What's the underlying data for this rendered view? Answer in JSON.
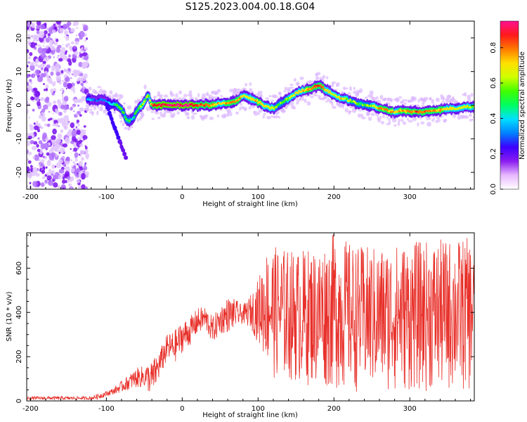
{
  "title": "S125.2023.004.00.18.G04",
  "chart_data": [
    {
      "type": "heatmap",
      "xlabel": "Height of straight line (km)",
      "ylabel": "Frequency (Hz)",
      "xlim": [
        -205,
        385
      ],
      "ylim": [
        -25,
        25
      ],
      "x_ticks": [
        -200,
        -100,
        0,
        100,
        200,
        300
      ],
      "y_ticks": [
        -20,
        -10,
        0,
        10,
        20
      ],
      "colorbar": {
        "label": "Normalized spectral amplitude",
        "range": [
          0,
          0.95
        ],
        "ticks": [
          0.0,
          0.2,
          0.4,
          0.6,
          0.8
        ],
        "colors": [
          "#ffffff",
          "#e8b8ff",
          "#8a1cf0",
          "#3d00ff",
          "#0080ff",
          "#00e0ff",
          "#00ff60",
          "#40ff00",
          "#d0ff00",
          "#ffe000",
          "#ff7a00",
          "#ff1a1a",
          "#ff1090"
        ]
      },
      "noise_region_x": [
        -205,
        -125
      ],
      "ridge": {
        "x": [
          -125,
          -115,
          -105,
          -95,
          -85,
          -78,
          -72,
          -65,
          -58,
          -50,
          -45,
          -40,
          -30,
          -20,
          -10,
          0,
          10,
          20,
          30,
          40,
          50,
          60,
          70,
          80,
          90,
          100,
          110,
          120,
          130,
          140,
          150,
          160,
          170,
          180,
          190,
          200,
          210,
          220,
          230,
          240,
          250,
          260,
          270,
          280,
          290,
          300,
          310,
          320,
          330,
          340,
          350,
          360,
          370,
          380
        ],
        "y": [
          2,
          1.5,
          1.5,
          0.5,
          0,
          -2,
          -5,
          -4,
          -1,
          1,
          3,
          0,
          0,
          0,
          0,
          0,
          0,
          0,
          0,
          0,
          0.5,
          0.5,
          1,
          3,
          2,
          1,
          -0.5,
          -1,
          0.5,
          2,
          3.5,
          4.5,
          5,
          6,
          4.5,
          3,
          2,
          1.5,
          0.5,
          0,
          0,
          -1,
          -1.5,
          -2,
          -1.5,
          -2,
          -2,
          -2,
          -1.5,
          -1.5,
          -1,
          -1,
          -0.5,
          -0.5
        ],
        "amp": [
          0.35,
          0.3,
          0.3,
          0.35,
          0.5,
          0.55,
          0.5,
          0.45,
          0.55,
          0.65,
          0.55,
          0.8,
          0.9,
          0.92,
          0.95,
          0.95,
          0.9,
          0.85,
          0.8,
          0.75,
          0.7,
          0.75,
          0.8,
          0.7,
          0.65,
          0.75,
          0.7,
          0.6,
          0.55,
          0.6,
          0.65,
          0.7,
          0.8,
          0.85,
          0.7,
          0.6,
          0.7,
          0.6,
          0.55,
          0.55,
          0.6,
          0.75,
          0.8,
          0.7,
          0.75,
          0.8,
          0.8,
          0.8,
          0.75,
          0.75,
          0.7,
          0.7,
          0.65,
          0.6
        ]
      }
    },
    {
      "type": "line",
      "xlabel": "Height of straight line (km)",
      "ylabel": "SNR (10 * v/v)",
      "xlim": [
        -205,
        385
      ],
      "ylim": [
        0,
        760
      ],
      "x_ticks": [
        -200,
        -100,
        0,
        100,
        200,
        300
      ],
      "y_ticks": [
        0,
        200,
        400,
        600
      ],
      "color": "#e8302a",
      "envelope": {
        "x": [
          -205,
          -120,
          -110,
          -100,
          -90,
          -80,
          -70,
          -60,
          -50,
          -40,
          -30,
          -20,
          -10,
          0,
          10,
          20,
          30,
          40,
          50,
          60,
          70,
          80,
          90,
          100,
          110,
          120,
          150,
          180,
          200,
          230,
          260,
          300,
          340,
          385
        ],
        "low": [
          5,
          5,
          8,
          20,
          30,
          40,
          50,
          60,
          60,
          20,
          100,
          180,
          170,
          220,
          250,
          300,
          320,
          260,
          300,
          310,
          330,
          350,
          330,
          260,
          180,
          100,
          80,
          60,
          50,
          40,
          40,
          40,
          40,
          40
        ],
        "high": [
          20,
          20,
          35,
          45,
          60,
          90,
          120,
          150,
          160,
          180,
          230,
          300,
          320,
          360,
          380,
          420,
          430,
          380,
          430,
          470,
          460,
          430,
          480,
          550,
          680,
          700,
          680,
          700,
          760,
          700,
          700,
          720,
          730,
          740
        ]
      }
    }
  ]
}
